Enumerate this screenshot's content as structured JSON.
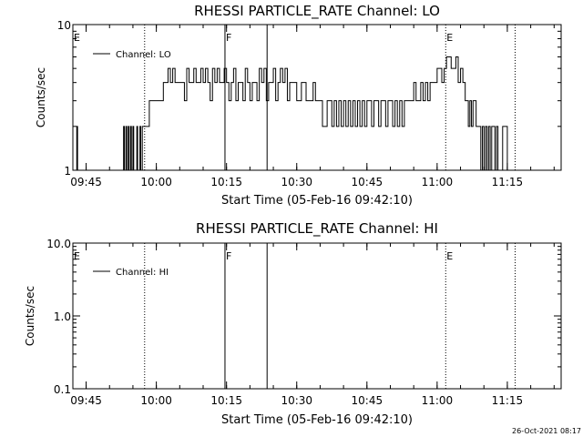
{
  "chart_data": [
    {
      "type": "line",
      "title": "RHESSI PARTICLE_RATE Channel: LO",
      "xlabel": "Start Time (05-Feb-16 09:42:10)",
      "ylabel": "Counts/sec",
      "yscale": "log",
      "xlim": [
        "09:42:10",
        "11:26:30"
      ],
      "ylim": [
        1,
        10
      ],
      "x_ticks": [
        "09:45",
        "10:00",
        "10:15",
        "10:30",
        "10:45",
        "11:00",
        "11:15"
      ],
      "y_ticks": [
        "1",
        "10"
      ],
      "legend": {
        "label": "Channel: LO",
        "position": "top-left"
      },
      "markers": [
        {
          "time": "09:57:30",
          "label": "",
          "style": "dotted"
        },
        {
          "time": "10:14:40",
          "label": "F",
          "style": "solid"
        },
        {
          "time": "10:23:40",
          "label": "",
          "style": "solid"
        },
        {
          "time": "11:01:50",
          "label": "E",
          "style": "dotted"
        },
        {
          "time": "11:16:40",
          "label": "",
          "style": "dotted"
        }
      ],
      "start_marker": {
        "label": "E"
      },
      "series": [
        {
          "x": [
            "09:42:10",
            "09:43:00",
            "09:43:10",
            "09:43:20",
            "09:43:30",
            "09:52:50",
            "09:53:00",
            "09:53:10",
            "09:53:20",
            "09:53:30",
            "09:53:40",
            "09:53:50",
            "09:54:00",
            "09:54:10",
            "09:54:20",
            "09:54:30",
            "09:54:40",
            "09:54:50",
            "09:55:00",
            "09:55:10",
            "09:55:20",
            "09:55:30",
            "09:55:40",
            "09:55:50",
            "09:56:00",
            "09:56:10",
            "09:56:20",
            "09:56:30",
            "09:56:40",
            "09:56:50",
            "09:57:00",
            "09:57:30",
            "09:58:00",
            "09:58:30",
            "09:59:00",
            "10:00:00",
            "10:01:00",
            "10:01:30",
            "10:02:00",
            "10:02:30",
            "10:03:00",
            "10:03:30",
            "10:04:00",
            "10:04:30",
            "10:05:00",
            "10:05:30",
            "10:06:00",
            "10:06:30",
            "10:07:00",
            "10:07:30",
            "10:08:00",
            "10:08:30",
            "10:09:00",
            "10:09:30",
            "10:10:00",
            "10:10:30",
            "10:11:00",
            "10:11:30",
            "10:12:00",
            "10:12:30",
            "10:13:00",
            "10:13:30",
            "10:14:00",
            "10:14:30",
            "10:15:00",
            "10:15:30",
            "10:16:00",
            "10:16:30",
            "10:17:00",
            "10:17:30",
            "10:18:00",
            "10:18:30",
            "10:19:00",
            "10:19:30",
            "10:20:00",
            "10:20:30",
            "10:21:00",
            "10:21:30",
            "10:22:00",
            "10:22:30",
            "10:23:00",
            "10:23:30",
            "10:24:00",
            "10:24:30",
            "10:25:00",
            "10:25:30",
            "10:26:00",
            "10:26:30",
            "10:27:00",
            "10:27:30",
            "10:28:00",
            "10:28:30",
            "10:29:00",
            "10:29:30",
            "10:30:00",
            "10:31:00",
            "10:32:00",
            "10:32:30",
            "10:33:00",
            "10:33:30",
            "10:34:00",
            "10:34:30",
            "10:35:00",
            "10:35:30",
            "10:36:00",
            "10:36:30",
            "10:37:00",
            "10:37:30",
            "10:38:00",
            "10:38:30",
            "10:39:00",
            "10:39:30",
            "10:40:00",
            "10:40:30",
            "10:41:00",
            "10:41:30",
            "10:42:00",
            "10:42:30",
            "10:43:00",
            "10:43:30",
            "10:44:00",
            "10:44:30",
            "10:45:00",
            "10:45:30",
            "10:46:00",
            "10:46:30",
            "10:47:00",
            "10:47:30",
            "10:48:00",
            "10:48:30",
            "10:49:00",
            "10:49:30",
            "10:50:00",
            "10:50:30",
            "10:51:00",
            "10:51:30",
            "10:52:00",
            "10:52:30",
            "10:53:00",
            "10:53:30",
            "10:54:00",
            "10:54:30",
            "10:55:00",
            "10:55:30",
            "10:56:00",
            "10:56:30",
            "10:57:00",
            "10:57:30",
            "10:58:00",
            "10:58:30",
            "10:59:00",
            "10:59:30",
            "11:00:00",
            "11:00:30",
            "11:01:00",
            "11:01:30",
            "11:02:00",
            "11:03:00",
            "11:03:30",
            "11:04:00",
            "11:04:30",
            "11:05:00",
            "11:05:30",
            "11:06:00",
            "11:06:20",
            "11:06:40",
            "11:07:00",
            "11:07:20",
            "11:07:40",
            "11:08:00",
            "11:08:20",
            "11:08:40",
            "11:09:00",
            "11:09:20",
            "11:09:40",
            "11:10:00",
            "11:10:20",
            "11:10:40",
            "11:11:00",
            "11:11:20",
            "11:11:40",
            "11:12:00",
            "11:12:20",
            "11:12:40",
            "11:13:00",
            "11:13:30",
            "11:14:00",
            "11:15:00",
            "11:16:00",
            "11:18:00"
          ],
          "y": [
            1,
            2,
            1,
            1,
            1,
            1,
            2,
            1,
            1,
            2,
            1,
            1,
            2,
            1,
            1,
            2,
            1,
            1,
            2,
            1,
            1,
            1,
            1,
            2,
            1,
            1,
            1,
            2,
            1,
            1,
            2,
            2,
            2,
            3,
            3,
            3,
            3,
            4,
            4,
            5,
            4,
            5,
            4,
            4,
            4,
            4,
            3,
            5,
            4,
            4,
            5,
            4,
            4,
            5,
            4,
            5,
            4,
            3,
            5,
            4,
            5,
            4,
            4,
            5,
            4,
            3,
            4,
            5,
            3,
            4,
            4,
            3,
            5,
            4,
            3,
            4,
            4,
            3,
            5,
            4,
            5,
            3,
            4,
            4,
            5,
            3,
            4,
            5,
            4,
            5,
            3,
            4,
            4,
            4,
            3,
            4,
            3,
            3,
            3,
            4,
            3,
            3,
            3,
            2,
            2,
            3,
            3,
            2,
            3,
            2,
            3,
            2,
            3,
            2,
            3,
            2,
            3,
            2,
            3,
            2,
            3,
            2,
            3,
            3,
            2,
            3,
            3,
            2,
            3,
            3,
            2,
            3,
            3,
            2,
            3,
            2,
            3,
            2,
            3,
            3,
            3,
            3,
            4,
            3,
            3,
            4,
            3,
            4,
            3,
            4,
            4,
            4,
            5,
            5,
            4,
            5,
            6,
            5,
            5,
            6,
            4,
            5,
            4,
            3,
            3,
            2,
            3,
            2,
            3,
            3,
            2,
            2,
            2,
            1,
            2,
            1,
            2,
            1,
            2,
            1,
            2,
            2,
            1,
            2,
            1,
            1,
            2,
            1,
            1,
            1
          ]
        }
      ]
    },
    {
      "type": "line",
      "title": "RHESSI PARTICLE_RATE Channel: HI",
      "xlabel": "Start Time (05-Feb-16 09:42:10)",
      "ylabel": "Counts/sec",
      "yscale": "log",
      "xlim": [
        "09:42:10",
        "11:26:30"
      ],
      "ylim": [
        0.1,
        10
      ],
      "x_ticks": [
        "09:45",
        "10:00",
        "10:15",
        "10:30",
        "10:45",
        "11:00",
        "11:15"
      ],
      "y_ticks": [
        "0.1",
        "1.0",
        "10.0"
      ],
      "legend": {
        "label": "Channel: HI",
        "position": "top-left"
      },
      "markers": [
        {
          "time": "09:57:30",
          "label": "",
          "style": "dotted"
        },
        {
          "time": "10:14:40",
          "label": "F",
          "style": "solid"
        },
        {
          "time": "10:23:40",
          "label": "",
          "style": "solid"
        },
        {
          "time": "11:01:50",
          "label": "E",
          "style": "dotted"
        },
        {
          "time": "11:16:40",
          "label": "",
          "style": "dotted"
        }
      ],
      "start_marker": {
        "label": "E"
      },
      "series": [
        {
          "x": [],
          "y": []
        }
      ]
    }
  ],
  "timestamp": "26-Oct-2021 08:17"
}
